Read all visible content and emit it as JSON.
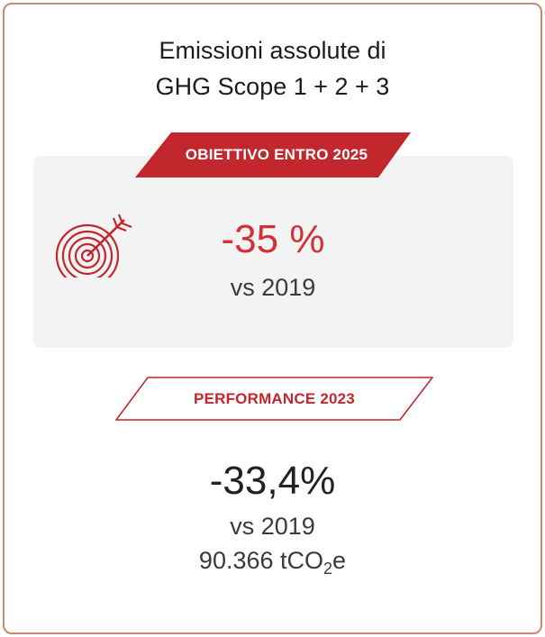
{
  "card": {
    "title_line1": "Emissioni assolute di",
    "title_line2": "GHG Scope 1 + 2 + 3"
  },
  "goal": {
    "badge_label": "OBIETTIVO ENTRO 2025",
    "value": "-35 %",
    "baseline": "vs 2019",
    "icon": "target-arrow-icon"
  },
  "performance": {
    "badge_label": "PERFORMANCE 2023",
    "value": "-33,4%",
    "baseline": "vs 2019",
    "emissions_number": "90.366 tCO",
    "emissions_subscript": "2",
    "emissions_suffix": "e"
  },
  "colors": {
    "accent_red": "#c1272d",
    "card_border": "#c98a6e",
    "panel_bg": "#f3f3f3"
  }
}
